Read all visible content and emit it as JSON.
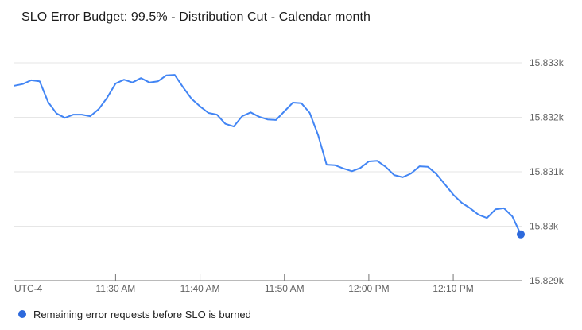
{
  "chart_data": {
    "type": "line",
    "title": "SLO Error Budget: 99.5% - Distribution Cut - Calendar month",
    "grid": true,
    "legend_position": "bottom-left",
    "x_axis": {
      "timezone_label": "UTC-4",
      "tick_labels": [
        "11:30 AM",
        "11:40 AM",
        "11:50 AM",
        "12:00 PM",
        "12:10 PM"
      ],
      "tick_minutes": [
        12,
        22,
        32,
        42,
        52
      ],
      "total_minutes": 60,
      "start_time": "11:18 AM",
      "end_time": "12:18 PM"
    },
    "y_axis": {
      "tick_labels": [
        "15.833k",
        "15.832k",
        "15.831k",
        "15.83k",
        "15.829k"
      ],
      "tick_values": [
        15833,
        15832,
        15831,
        15830,
        15829
      ],
      "min": 15829,
      "max": 15833
    },
    "series": [
      {
        "name": "Remaining error requests before SLO is burned",
        "color": "#4285f4",
        "marker_color": "#2d69dc",
        "end_marker": true,
        "times": [
          "11:18 AM",
          "11:19 AM",
          "11:20 AM",
          "11:21 AM",
          "11:22 AM",
          "11:23 AM",
          "11:24 AM",
          "11:25 AM",
          "11:26 AM",
          "11:27 AM",
          "11:28 AM",
          "11:29 AM",
          "11:30 AM",
          "11:31 AM",
          "11:32 AM",
          "11:33 AM",
          "11:34 AM",
          "11:35 AM",
          "11:36 AM",
          "11:37 AM",
          "11:38 AM",
          "11:39 AM",
          "11:40 AM",
          "11:41 AM",
          "11:42 AM",
          "11:43 AM",
          "11:44 AM",
          "11:45 AM",
          "11:46 AM",
          "11:47 AM",
          "11:48 AM",
          "11:49 AM",
          "11:50 AM",
          "11:51 AM",
          "11:52 AM",
          "11:53 AM",
          "11:54 AM",
          "11:55 AM",
          "11:56 AM",
          "11:57 AM",
          "11:58 AM",
          "11:59 AM",
          "12:00 PM",
          "12:01 PM",
          "12:02 PM",
          "12:03 PM",
          "12:04 PM",
          "12:05 PM",
          "12:06 PM",
          "12:07 PM",
          "12:08 PM",
          "12:09 PM",
          "12:10 PM",
          "12:11 PM",
          "12:12 PM",
          "12:13 PM",
          "12:14 PM",
          "12:15 PM",
          "12:16 PM",
          "12:17 PM",
          "12:18 PM"
        ],
        "values": [
          15832.58,
          15832.61,
          15832.68,
          15832.66,
          15832.28,
          15832.07,
          15831.99,
          15832.05,
          15832.05,
          15832.02,
          15832.15,
          15832.36,
          15832.62,
          15832.69,
          15832.64,
          15832.72,
          15832.64,
          15832.66,
          15832.77,
          15832.78,
          15832.55,
          15832.34,
          15832.2,
          15832.08,
          15832.05,
          15831.88,
          15831.83,
          15832.02,
          15832.09,
          15832.01,
          15831.96,
          15831.95,
          15832.11,
          15832.27,
          15832.26,
          15832.08,
          15831.67,
          15831.13,
          15831.12,
          15831.06,
          15831.01,
          15831.07,
          15831.19,
          15831.2,
          15831.09,
          15830.94,
          15830.9,
          15830.97,
          15831.1,
          15831.09,
          15830.96,
          15830.77,
          15830.58,
          15830.43,
          15830.33,
          15830.21,
          15830.15,
          15830.31,
          15830.33,
          15830.18,
          15829.85
        ]
      }
    ]
  },
  "legend": {
    "items": [
      {
        "label": "Remaining error requests before SLO is burned",
        "color": "#2d69dc"
      }
    ]
  },
  "colors": {
    "background": "#ffffff",
    "grid": "#e6e6e6",
    "axis": "#757575",
    "axis_text": "#616161",
    "title_text": "#1c1c1c",
    "legend_text": "#212121"
  }
}
